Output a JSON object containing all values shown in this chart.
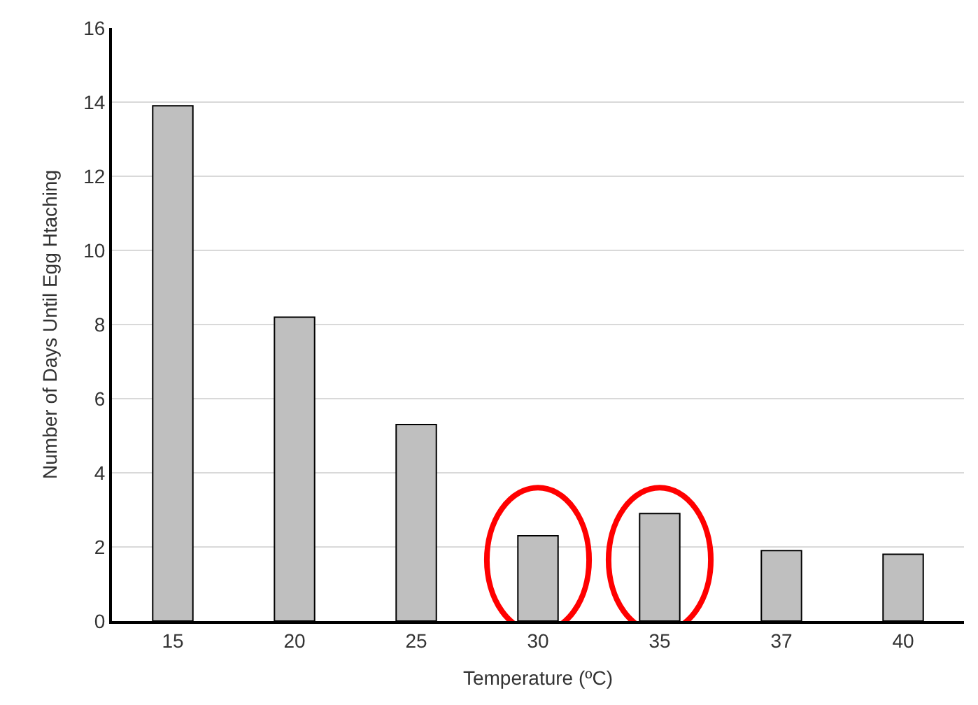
{
  "chart_data": {
    "type": "bar",
    "xlabel": "Temperature (ºC)",
    "ylabel": "Number of Days Until Egg Htaching",
    "categories": [
      "15",
      "20",
      "25",
      "30",
      "35",
      "37",
      "40"
    ],
    "values": [
      13.9,
      8.2,
      5.3,
      2.3,
      2.9,
      1.9,
      1.8
    ],
    "color": "#bfbfbf",
    "ylim": [
      0,
      16
    ],
    "yticks": [
      0,
      2,
      4,
      6,
      8,
      10,
      12,
      14,
      16
    ],
    "grid": "y"
  }
}
